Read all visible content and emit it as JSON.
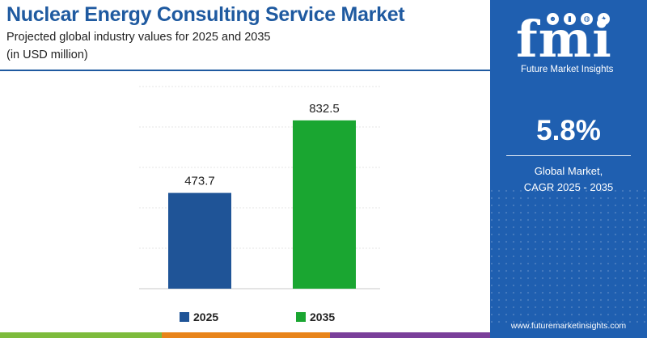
{
  "chart_data": {
    "type": "bar",
    "title": "Nuclear Energy Consulting Service Market",
    "subtitle": "Projected global industry values for 2025 and 2035",
    "unit_note": "(in USD million)",
    "categories": [
      "2025",
      "2035"
    ],
    "values": [
      473.7,
      832.5
    ],
    "value_labels": [
      "473.7",
      "832.5"
    ],
    "colors": [
      "#1f5497",
      "#1aa631"
    ],
    "ylim": [
      0,
      1000
    ],
    "grid": true,
    "legend_position": "bottom",
    "legend": [
      {
        "label": "2025",
        "color": "#1f5497"
      },
      {
        "label": "2035",
        "color": "#1aa631"
      }
    ]
  },
  "panel": {
    "logo_text": "fmi",
    "logo_subtitle": "Future Market Insights",
    "logo_icons": [
      "person-icon",
      "chart-icon",
      "globe-icon",
      "lightbulb-icon"
    ],
    "cagr_value": "5.8%",
    "cagr_label_line1": "Global Market,",
    "cagr_label_line2": "CAGR 2025 - 2035",
    "website": "www.futuremarketinsights.com",
    "background_color": "#1f5fb0"
  },
  "accent_colors": {
    "title": "#1f5aa0",
    "strip": [
      "#7dbb3c",
      "#e8841a",
      "#7a3f9a",
      "#3aa0d8"
    ]
  }
}
